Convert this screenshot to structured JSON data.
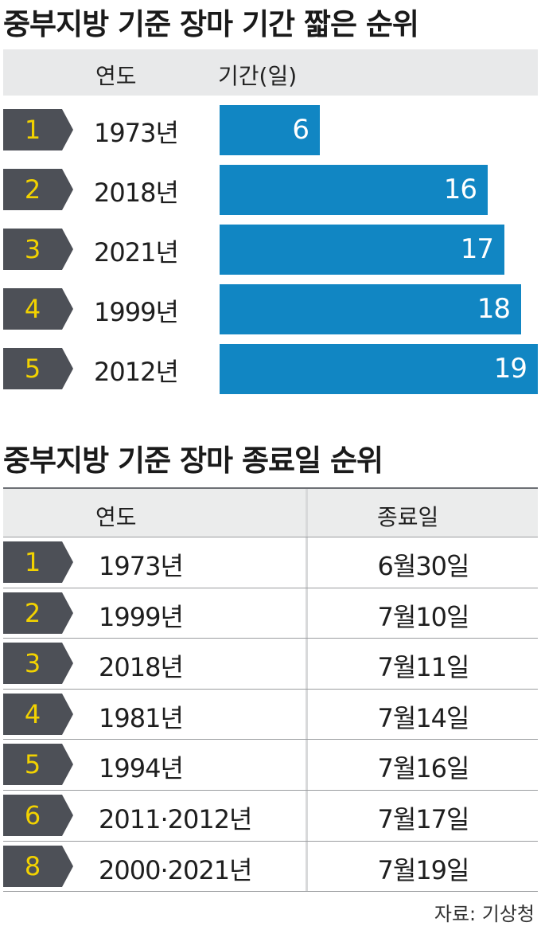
{
  "chart_data": [
    {
      "type": "bar",
      "title": "중부지방 기준 장마 기간 짧은 순위",
      "header": {
        "rank_col": "",
        "year_col": "연도",
        "value_col": "기간(일)"
      },
      "ranks": [
        "1",
        "2",
        "3",
        "4",
        "5"
      ],
      "categories": [
        "1973년",
        "2018년",
        "2021년",
        "1999년",
        "2012년"
      ],
      "values": [
        6,
        16,
        17,
        18,
        19
      ],
      "value_labels": [
        "6",
        "16",
        "17",
        "18",
        "19"
      ],
      "xlim": [
        0,
        19
      ],
      "colors": {
        "bar": "#1186c3",
        "rank_tag": "#4d5057",
        "rank_text": "#f2d200"
      }
    },
    {
      "type": "table",
      "title": "중부지방 기준 장마 종료일 순위",
      "columns": [
        "연도",
        "종료일"
      ],
      "rows": [
        {
          "rank": "1",
          "year": "1973년",
          "end": "6월30일"
        },
        {
          "rank": "2",
          "year": "1999년",
          "end": "7월10일"
        },
        {
          "rank": "3",
          "year": "2018년",
          "end": "7월11일"
        },
        {
          "rank": "4",
          "year": "1981년",
          "end": "7월14일"
        },
        {
          "rank": "5",
          "year": "1994년",
          "end": "7월16일"
        },
        {
          "rank": "6",
          "year": "2011·2012년",
          "end": "7월17일"
        },
        {
          "rank": "8",
          "year": "2000·2021년",
          "end": "7월19일"
        }
      ]
    }
  ],
  "source": "자료: 기상청"
}
